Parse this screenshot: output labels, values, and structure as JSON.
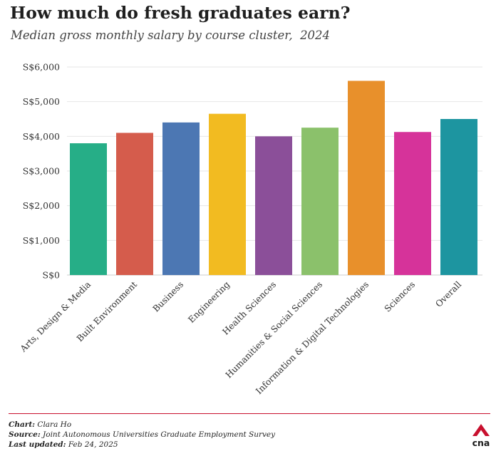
{
  "header": {
    "title": "How much do fresh graduates earn?",
    "subtitle": "Median gross monthly salary by course cluster,  2024"
  },
  "footer": {
    "chart_label": "Chart:",
    "chart_value": "Clara Ho",
    "source_label": "Source:",
    "source_value": "Joint Autonomous Universities Graduate Employment Survey",
    "updated_label": "Last updated:",
    "updated_value": "Feb 24, 2025",
    "logo_text": "cna"
  },
  "colors": {
    "brand_red": "#c8102e",
    "grid": "#e6e6e6",
    "axis": "#cccccc"
  },
  "chart_data": {
    "type": "bar",
    "title": "How much do fresh graduates earn?",
    "subtitle": "Median gross monthly salary by course cluster,  2024",
    "xlabel": "",
    "ylabel": "",
    "ylim": [
      0,
      6000
    ],
    "yticks": [
      0,
      1000,
      2000,
      3000,
      4000,
      5000,
      6000
    ],
    "ytick_labels": [
      "S$0",
      "S$1,000",
      "S$2,000",
      "S$3,000",
      "S$4,000",
      "S$5,000",
      "S$6,000"
    ],
    "grid": true,
    "categories": [
      "Arts, Design & Media",
      "Built Environment",
      "Business",
      "Engineering",
      "Health Sciences",
      "Humanities & Social Sciences",
      "Information & Digital Technologies",
      "Sciences",
      "Overall"
    ],
    "values": [
      3800,
      4100,
      4400,
      4650,
      4000,
      4250,
      5600,
      4125,
      4500
    ],
    "bar_colors": [
      "#26ae87",
      "#d55c4c",
      "#4c77b3",
      "#f2bb21",
      "#8b4f99",
      "#8bc16b",
      "#e8902b",
      "#d6339a",
      "#1d95a0"
    ]
  }
}
